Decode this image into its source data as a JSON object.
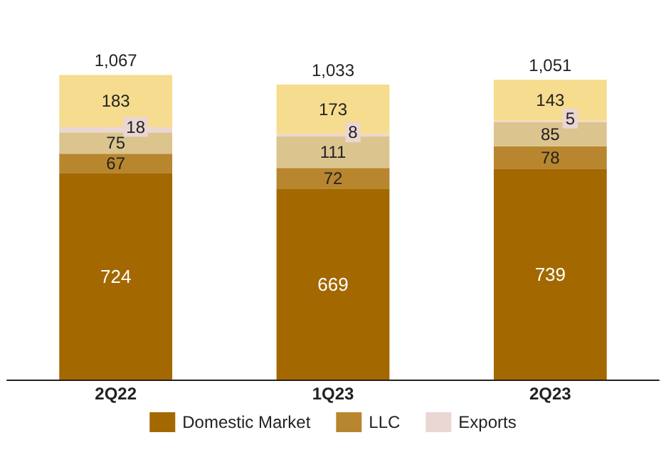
{
  "chart_data": {
    "type": "bar",
    "stacked": true,
    "categories": [
      "2Q22",
      "1Q23",
      "2Q23"
    ],
    "series": [
      {
        "name": "Domestic Market",
        "color": "#a36800",
        "values": [
          724,
          669,
          739
        ]
      },
      {
        "name": "LLC",
        "color": "#b8862e",
        "values": [
          67,
          72,
          78
        ]
      },
      {
        "color": "#dcc48e",
        "values": [
          75,
          111,
          85
        ]
      },
      {
        "name": "Exports",
        "color": "#ead6d2",
        "values": [
          18,
          8,
          5
        ]
      },
      {
        "color": "#f6dc8e",
        "values": [
          183,
          173,
          143
        ]
      }
    ],
    "data_labels": true,
    "totals": [
      "1,067",
      "1,033",
      "1,051"
    ],
    "legend": "bottom"
  }
}
